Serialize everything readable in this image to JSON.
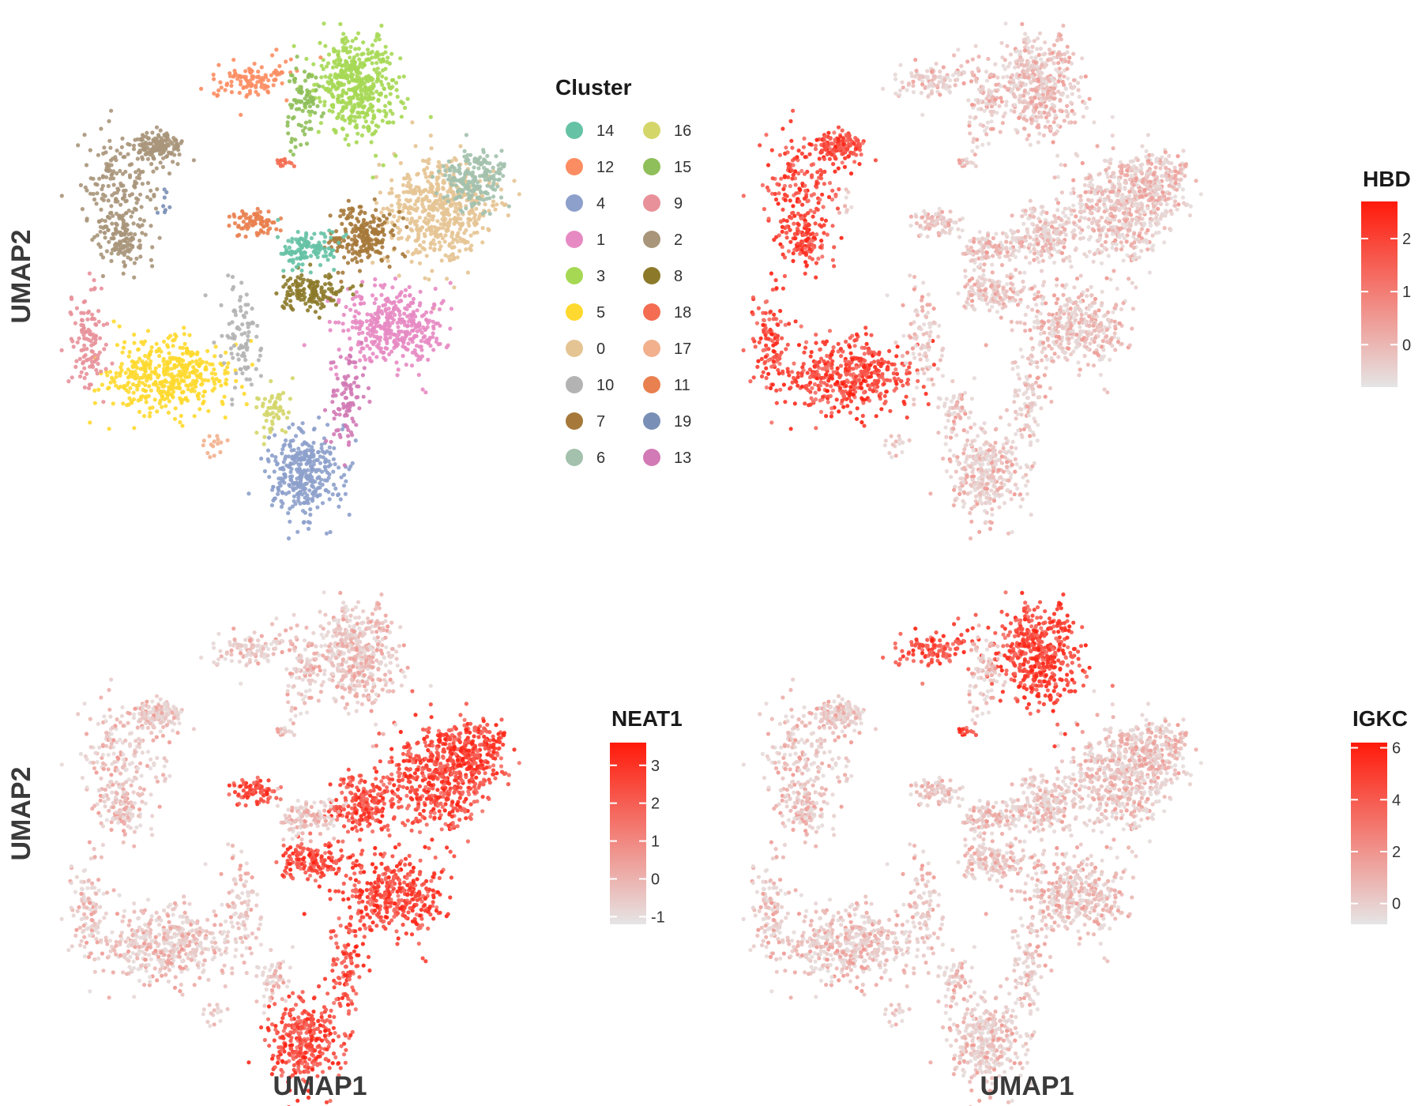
{
  "figure": {
    "axis_titles": {
      "y_top": "UMAP2",
      "y_bottom": "UMAP2",
      "x_left": "UMAP1",
      "x_right": "UMAP1"
    }
  },
  "chart_data": [
    {
      "type": "scatter",
      "panel": "cluster",
      "legend_title": "Cluster",
      "legend_placement": "right",
      "legend_items": [
        {
          "label": "14",
          "color": "#66C2A5"
        },
        {
          "label": "12",
          "color": "#FC8D62"
        },
        {
          "label": "4",
          "color": "#8DA0CB"
        },
        {
          "label": "1",
          "color": "#E78AC3"
        },
        {
          "label": "3",
          "color": "#A6D854"
        },
        {
          "label": "5",
          "color": "#FFD92F"
        },
        {
          "label": "0",
          "color": "#E5C494"
        },
        {
          "label": "10",
          "color": "#B3B3B3"
        },
        {
          "label": "7",
          "color": "#A6793A"
        },
        {
          "label": "6",
          "color": "#A3C1AD"
        },
        {
          "label": "16",
          "color": "#D4D66A"
        },
        {
          "label": "15",
          "color": "#8FBF5A"
        },
        {
          "label": "9",
          "color": "#E8919A"
        },
        {
          "label": "2",
          "color": "#A8957A"
        },
        {
          "label": "8",
          "color": "#8C7A2A"
        },
        {
          "label": "18",
          "color": "#F46D53"
        },
        {
          "label": "17",
          "color": "#F2B08D"
        },
        {
          "label": "11",
          "color": "#E9804F"
        },
        {
          "label": "19",
          "color": "#7A8FB5"
        },
        {
          "label": "13",
          "color": "#D27AB5"
        }
      ],
      "grid": false
    },
    {
      "type": "scatter",
      "panel": "feature",
      "gene": "HBD",
      "legend_title": "HBD",
      "colorbar": {
        "low": "#E5E5E5",
        "high": "#FF1A0A",
        "range": [
          -0.8,
          2.7
        ],
        "ticks": [
          "2",
          "1",
          "0"
        ],
        "tick_values": [
          2,
          1,
          0
        ]
      },
      "high_expression_clusters": [
        "2",
        "9",
        "5"
      ],
      "grid": false
    },
    {
      "type": "scatter",
      "panel": "feature",
      "gene": "NEAT1",
      "legend_title": "NEAT1",
      "colorbar": {
        "low": "#E5E5E5",
        "high": "#FF1A0A",
        "range": [
          -1.2,
          3.6
        ],
        "ticks": [
          "3",
          "2",
          "1",
          "0",
          "-1"
        ],
        "tick_values": [
          3,
          2,
          1,
          0,
          -1
        ]
      },
      "high_expression_clusters": [
        "4",
        "13",
        "1",
        "8",
        "7",
        "0",
        "6",
        "11"
      ],
      "grid": false
    },
    {
      "type": "scatter",
      "panel": "feature",
      "gene": "IGKC",
      "legend_title": "IGKC",
      "colorbar": {
        "low": "#E5E5E5",
        "high": "#FF1A0A",
        "range": [
          -0.8,
          6.2
        ],
        "ticks": [
          "6",
          "4",
          "2",
          "0"
        ],
        "tick_values": [
          6,
          4,
          2,
          0
        ]
      },
      "high_expression_clusters": [
        "18",
        "3",
        "12"
      ],
      "grid": false
    }
  ]
}
